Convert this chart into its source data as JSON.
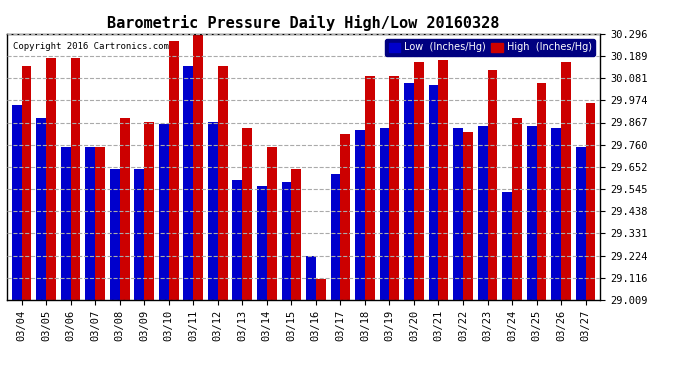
{
  "title": "Barometric Pressure Daily High/Low 20160328",
  "copyright": "Copyright 2016 Cartronics.com",
  "dates": [
    "03/04",
    "03/05",
    "03/06",
    "03/07",
    "03/08",
    "03/09",
    "03/10",
    "03/11",
    "03/12",
    "03/13",
    "03/14",
    "03/15",
    "03/16",
    "03/17",
    "03/18",
    "03/19",
    "03/20",
    "03/21",
    "03/22",
    "03/23",
    "03/24",
    "03/25",
    "03/26",
    "03/27"
  ],
  "low": [
    29.95,
    29.89,
    29.75,
    29.75,
    29.64,
    29.64,
    29.86,
    30.14,
    29.87,
    29.59,
    29.56,
    29.58,
    29.22,
    29.62,
    29.83,
    29.84,
    30.06,
    30.05,
    29.84,
    29.85,
    29.53,
    29.85,
    29.84,
    29.75
  ],
  "high": [
    30.14,
    30.18,
    30.18,
    29.75,
    29.89,
    29.87,
    30.26,
    30.29,
    30.14,
    29.84,
    29.75,
    29.64,
    29.11,
    29.81,
    30.09,
    30.09,
    30.16,
    30.17,
    29.82,
    30.12,
    29.89,
    30.06,
    30.16,
    29.96
  ],
  "low_color": "#0000cc",
  "high_color": "#cc0000",
  "background_color": "#ffffff",
  "grid_color": "#aaaaaa",
  "ylim_min": 29.009,
  "ylim_max": 30.296,
  "yticks": [
    29.009,
    29.116,
    29.224,
    29.331,
    29.438,
    29.545,
    29.652,
    29.76,
    29.867,
    29.974,
    30.081,
    30.189,
    30.296
  ]
}
